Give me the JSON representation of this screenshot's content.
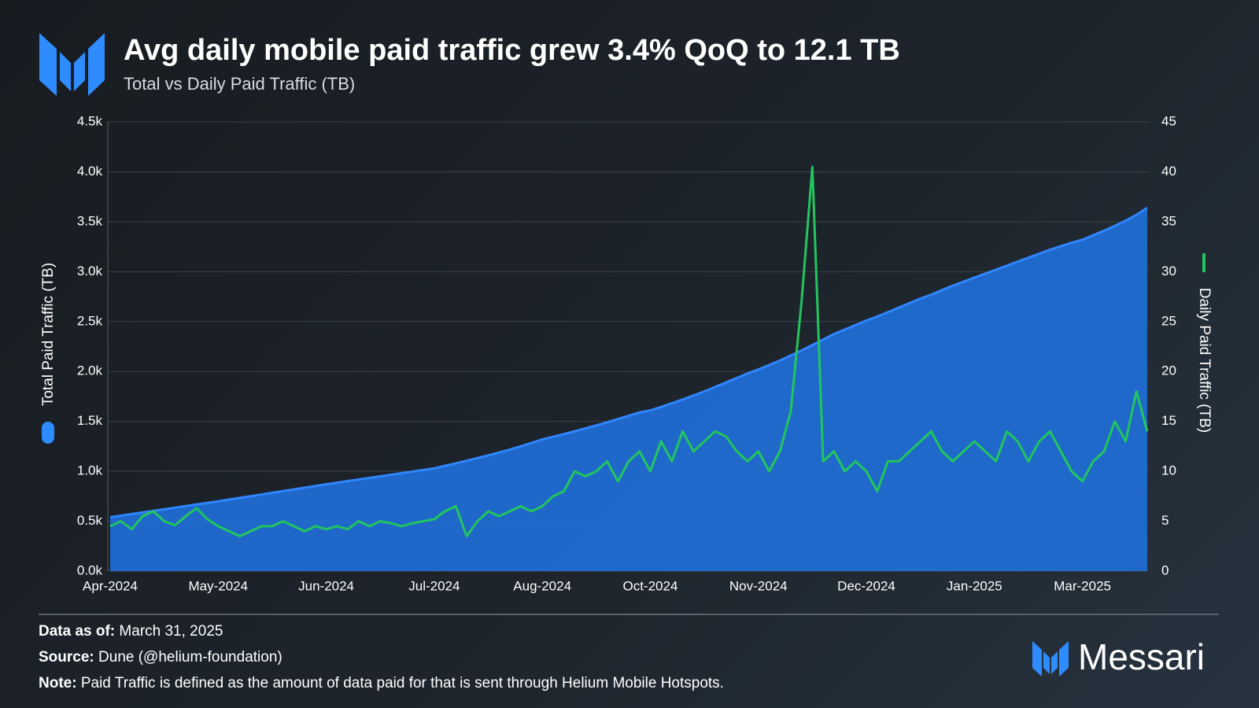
{
  "chart_data": {
    "type": "area-line",
    "title": "Avg daily mobile paid traffic grew 3.4% QoQ to 12.1 TB",
    "subtitle": "Total vs Daily Paid Traffic (TB)",
    "categories": [
      "Apr-2024",
      null,
      null,
      null,
      null,
      null,
      null,
      null,
      null,
      null,
      "May-2024",
      null,
      null,
      null,
      null,
      null,
      null,
      null,
      null,
      null,
      "Jun-2024",
      null,
      null,
      null,
      null,
      null,
      null,
      null,
      null,
      null,
      "Jul-2024",
      null,
      null,
      null,
      null,
      null,
      null,
      null,
      null,
      null,
      "Aug-2024",
      null,
      null,
      null,
      null,
      null,
      null,
      null,
      null,
      null,
      "Oct-2024",
      null,
      null,
      null,
      null,
      null,
      null,
      null,
      null,
      null,
      "Nov-2024",
      null,
      null,
      null,
      null,
      null,
      null,
      null,
      null,
      null,
      "Dec-2024",
      null,
      null,
      null,
      null,
      null,
      null,
      null,
      null,
      null,
      "Jan-2025",
      null,
      null,
      null,
      null,
      null,
      null,
      null,
      null,
      null,
      "Mar-2025",
      null,
      null,
      null,
      null,
      null,
      null
    ],
    "series": [
      {
        "name": "Total Paid Traffic (TB)",
        "color": "#1f6fd8",
        "axis": "y",
        "values": [
          540,
          556,
          572,
          588,
          604,
          620,
          636,
          652,
          668,
          684,
          700,
          717,
          734,
          751,
          768,
          785,
          802,
          819,
          836,
          853,
          870,
          886,
          902,
          918,
          934,
          950,
          966,
          982,
          998,
          1014,
          1030,
          1055,
          1080,
          1106,
          1133,
          1160,
          1188,
          1218,
          1250,
          1284,
          1320,
          1346,
          1373,
          1401,
          1430,
          1460,
          1491,
          1523,
          1556,
          1590,
          1610,
          1645,
          1682,
          1720,
          1760,
          1800,
          1845,
          1890,
          1935,
          1980,
          2020,
          2065,
          2110,
          2160,
          2210,
          2265,
          2320,
          2375,
          2420,
          2465,
          2510,
          2550,
          2595,
          2640,
          2685,
          2730,
          2770,
          2815,
          2860,
          2900,
          2940,
          2980,
          3020,
          3060,
          3100,
          3140,
          3180,
          3220,
          3255,
          3290,
          3320,
          3365,
          3410,
          3460,
          3510,
          3570,
          3640
        ]
      },
      {
        "name": "Daily Paid Traffic (TB)",
        "color": "#22c55e",
        "axis": "y2",
        "values": [
          4.5,
          5,
          4.2,
          5.5,
          6,
          5,
          4.6,
          5.5,
          6.3,
          5.2,
          4.5,
          4,
          3.5,
          4,
          4.5,
          4.5,
          5,
          4.5,
          4,
          4.5,
          4.2,
          4.5,
          4.2,
          5,
          4.5,
          5,
          4.8,
          4.5,
          4.8,
          5,
          5.2,
          6,
          6.5,
          3.5,
          5,
          6,
          5.5,
          6,
          6.5,
          6,
          6.5,
          7.5,
          8,
          10,
          9.5,
          10,
          11,
          9,
          11,
          12,
          10,
          13,
          11,
          14,
          12,
          13,
          14,
          13.5,
          12,
          11,
          12,
          10,
          12,
          16,
          27,
          40.5,
          11,
          12,
          10,
          11,
          10,
          8,
          11,
          11,
          12,
          13,
          14,
          12,
          11,
          12,
          13,
          12,
          11,
          14,
          13,
          11,
          13,
          14,
          12,
          10,
          9,
          11,
          12,
          15,
          13,
          18,
          14
        ]
      }
    ],
    "ylim": [
      0,
      4500
    ],
    "yticks": [
      {
        "value": 0,
        "label": "0.0k"
      },
      {
        "value": 500,
        "label": "0.5k"
      },
      {
        "value": 1000,
        "label": "1.0k"
      },
      {
        "value": 1500,
        "label": "1.5k"
      },
      {
        "value": 2000,
        "label": "2.0k"
      },
      {
        "value": 2500,
        "label": "2.5k"
      },
      {
        "value": 3000,
        "label": "3.0k"
      },
      {
        "value": 3500,
        "label": "3.5k"
      },
      {
        "value": 4000,
        "label": "4.0k"
      },
      {
        "value": 4500,
        "label": "4.5k"
      }
    ],
    "y2lim": [
      0,
      45
    ],
    "y2ticks": [
      0,
      5,
      10,
      15,
      20,
      25,
      30,
      35,
      40,
      45
    ],
    "grid": true
  },
  "footer": {
    "data_as_of": {
      "label": "Data as of:",
      "text": "March 31, 2025"
    },
    "source": {
      "label": "Source:",
      "text": "Dune (@helium-foundation)"
    },
    "note": {
      "label": "Note:",
      "text": "Paid Traffic is defined as the amount of data paid for that is sent through Helium Mobile Hotspots."
    },
    "brand": "Messari"
  }
}
